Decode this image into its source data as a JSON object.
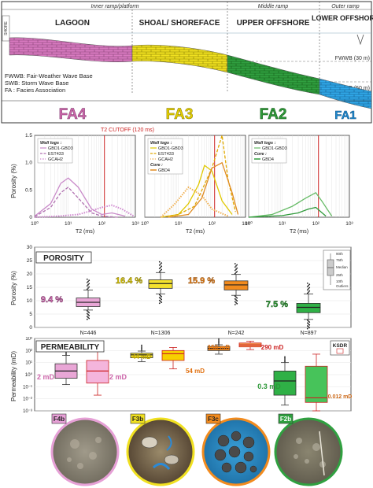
{
  "header": {
    "ramp_labels": [
      "Inner ramp/platform",
      "Middle ramp",
      "Outer ramp"
    ],
    "zones": [
      "LAGOON",
      "SHOAL/ SHOREFACE",
      "UPPER OFFSHORE",
      "LOWER OFFSHORE"
    ],
    "shore_label": "SHORE",
    "fwwb_label": "FWWB (30 m)",
    "swb_label": "SWB (50 m)",
    "legend": [
      "FWWB: Fair-Weather Wave Base",
      "SWB: Storm Wave Base",
      "FA : Facies Association"
    ],
    "fa_labels": [
      "FA4",
      "FA3",
      "FA2",
      "FA1"
    ],
    "fa_colors": [
      "#cc66aa",
      "#d4b800",
      "#2f9a3a",
      "#1f8ad0"
    ]
  },
  "nmr": {
    "cutoff_label": "T2 CUTOFF (120 ms)",
    "ylabel": "Porosity (%)",
    "xlabel": "T2 (ms)",
    "xticks": [
      "10⁰",
      "10¹",
      "10²",
      "10³"
    ],
    "yticks": [
      "0",
      "0.5",
      "1.0",
      "1.5"
    ],
    "panels": [
      {
        "legend_title": "Well logs :",
        "entries": [
          "GBD1-GBD3",
          "EST433",
          "GCAH2"
        ],
        "core_title": "",
        "core_entries": []
      },
      {
        "legend_title": "Well logs :",
        "entries": [
          "GBD1-GBD3",
          "EST433",
          "GCAH2"
        ],
        "core_title": "Core :",
        "core_entries": [
          "GBD4"
        ]
      },
      {
        "legend_title": "Well logs :",
        "entries": [
          "GBD1-GBD3"
        ],
        "core_title": "Core :",
        "core_entries": [
          "GBD4"
        ]
      }
    ]
  },
  "porosity": {
    "title": "POROSITY",
    "ylabel": "Porosity (%)",
    "yticks": [
      "0",
      "5",
      "10",
      "15",
      "20",
      "25",
      "30"
    ],
    "values": [
      "9.4 %",
      "16.4 %",
      "15.9 %",
      "7.5 %"
    ],
    "legend_labels": [
      "90th",
      "75th",
      "Median",
      "25th",
      "10th",
      "Outliers"
    ]
  },
  "permeability": {
    "title": "PERMEABILITY",
    "ylabel": "Permeability (mD)",
    "counts": [
      "N=446",
      "N=1306",
      "N=242",
      "N=897"
    ],
    "ksdr_label": "KSDR",
    "values": [
      "2 mD",
      "2 mD",
      "44 mD",
      "54 mD",
      "150 mD",
      "290 mD",
      "0.3 mD",
      "0.012 mD"
    ],
    "yticks": [
      "10⁻³",
      "10⁻²",
      "10⁻¹",
      "10⁰",
      "10¹",
      "10²",
      "10³"
    ]
  },
  "thin_sections": {
    "labels": [
      "F4b",
      "F3b",
      "F3c",
      "F2b"
    ]
  },
  "chart_data": [
    {
      "type": "line",
      "title": "T2 CUTOFF (120 ms)",
      "xlabel": "T2 (ms)",
      "ylabel": "Porosity (%)",
      "xscale": "log",
      "xlim": [
        1,
        1000
      ],
      "ylim": [
        0,
        1.5
      ],
      "panels": [
        {
          "series": [
            {
              "name": "GBD1-GBD3",
              "color": "#c98ac9",
              "style": "solid",
              "x": [
                1,
                3,
                6,
                10,
                20,
                50,
                100,
                200,
                500
              ],
              "y": [
                0.02,
                0.25,
                0.62,
                0.72,
                0.55,
                0.15,
                0.05,
                0.08,
                0.02
              ]
            },
            {
              "name": "EST433",
              "color": "#b070b0",
              "style": "dashed",
              "x": [
                1,
                3,
                6,
                10,
                20,
                50,
                100,
                300
              ],
              "y": [
                0.01,
                0.18,
                0.45,
                0.55,
                0.35,
                0.08,
                0.02,
                0.0
              ]
            },
            {
              "name": "GCAH2",
              "color": "#d08ad0",
              "style": "dotted",
              "x": [
                1,
                5,
                20,
                50,
                100,
                200,
                400,
                900
              ],
              "y": [
                0.0,
                0.02,
                0.05,
                0.12,
                0.18,
                0.22,
                0.15,
                0.02
              ]
            }
          ]
        },
        {
          "series": [
            {
              "name": "GBD1-GBD3",
              "color": "#e0c800",
              "style": "solid",
              "x": [
                3,
                10,
                20,
                40,
                60,
                100,
                200,
                400
              ],
              "y": [
                0.0,
                0.05,
                0.25,
                0.6,
                0.95,
                0.85,
                0.3,
                0.05
              ]
            },
            {
              "name": "EST433",
              "color": "#e0a800",
              "style": "dashed",
              "x": [
                3,
                10,
                30,
                60,
                100,
                200,
                300,
                500
              ],
              "y": [
                0.0,
                0.05,
                0.2,
                0.6,
                0.9,
                1.55,
                0.7,
                0.1
              ]
            },
            {
              "name": "GCAH2",
              "color": "#f0b050",
              "style": "dotted",
              "x": [
                3,
                8,
                20,
                50,
                100,
                300
              ],
              "y": [
                0.0,
                0.25,
                0.55,
                0.4,
                0.15,
                0.02
              ]
            },
            {
              "name": "GBD4",
              "color": "#e08a20",
              "style": "solid",
              "x": [
                5,
                20,
                50,
                100,
                200,
                400,
                600
              ],
              "y": [
                0.0,
                0.05,
                0.35,
                0.9,
                1.0,
                0.45,
                0.05
              ]
            }
          ]
        },
        {
          "series": [
            {
              "name": "GBD1-GBD3",
              "color": "#66bb66",
              "style": "solid",
              "x": [
                1,
                5,
                20,
                50,
                100,
                150,
                300
              ],
              "y": [
                0.0,
                0.05,
                0.2,
                0.35,
                0.45,
                0.3,
                0.02
              ]
            },
            {
              "name": "GBD4",
              "color": "#2f9a3a",
              "style": "solid",
              "x": [
                1,
                10,
                30,
                60,
                100,
                200
              ],
              "y": [
                0.0,
                0.03,
                0.08,
                0.15,
                0.18,
                0.02
              ]
            }
          ]
        }
      ]
    },
    {
      "type": "box",
      "title": "POROSITY",
      "ylabel": "Porosity (%)",
      "ylim": [
        0,
        30
      ],
      "categories": [
        "FA4",
        "FA3",
        "FA2",
        "FA1"
      ],
      "boxes": [
        {
          "p10": 6.5,
          "p25": 7.8,
          "median": 9.4,
          "p75": 11.0,
          "p90": 14.0,
          "color": "#e9a6d6"
        },
        {
          "p10": 12.5,
          "p25": 14.6,
          "median": 16.4,
          "p75": 17.8,
          "p90": 20.5,
          "color": "#f4e12e"
        },
        {
          "p10": 12.0,
          "p25": 14.0,
          "median": 15.9,
          "p75": 17.4,
          "p90": 19.8,
          "color": "#f28b1e"
        },
        {
          "p10": 3.0,
          "p25": 5.5,
          "median": 7.5,
          "p75": 9.0,
          "p90": 12.5,
          "color": "#2fb046"
        }
      ]
    },
    {
      "type": "box",
      "title": "PERMEABILITY",
      "ylabel": "Permeability (mD)",
      "yscale": "log",
      "ylim": [
        0.001,
        1000
      ],
      "categories": [
        "FA4",
        "FA4-KSDR",
        "FA3",
        "FA3-KSDR",
        "FA2",
        "FA2-KSDR",
        "FA1",
        "FA1-KSDR"
      ],
      "boxes": [
        {
          "p10": 0.15,
          "p25": 0.5,
          "median": 2,
          "p75": 8,
          "p90": 40,
          "color": "#e9a6d6"
        },
        {
          "p10": 0.02,
          "p25": 0.2,
          "median": 2,
          "p75": 15,
          "p90": 120,
          "color": "#f4b5dc"
        },
        {
          "p10": 12,
          "p25": 25,
          "median": 44,
          "p75": 60,
          "p90": 90,
          "color": "#f4e12e"
        },
        {
          "p10": 3,
          "p25": 15,
          "median": 54,
          "p75": 100,
          "p90": 180,
          "color": "#f7d000"
        },
        {
          "p10": 50,
          "p25": 100,
          "median": 150,
          "p75": 220,
          "p90": 300,
          "color": "#f28b1e"
        },
        {
          "p10": 120,
          "p25": 200,
          "median": 290,
          "p75": 420,
          "p90": 600,
          "color": "#f5a056"
        },
        {
          "p10": 0.003,
          "p25": 0.02,
          "median": 0.3,
          "p75": 2,
          "p90": 10,
          "color": "#2fb046"
        },
        {
          "p10": 0.001,
          "p25": 0.005,
          "median": 0.012,
          "p75": 5,
          "p90": 50,
          "color": "#47c35a"
        }
      ]
    }
  ]
}
